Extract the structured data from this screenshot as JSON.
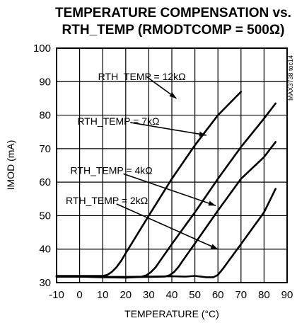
{
  "chart_data": {
    "type": "line",
    "title_line1": "TEMPERATURE COMPENSATION vs.",
    "title_line2": "RTH_TEMP (RMODTCOMP = 500Ω)",
    "xlabel": "TEMPERATURE (°C)",
    "ylabel": "IMOD (mA)",
    "xlim": [
      -10,
      90
    ],
    "ylim": [
      30,
      100
    ],
    "xticks": [
      -10,
      0,
      10,
      20,
      30,
      40,
      50,
      60,
      70,
      80,
      90
    ],
    "yticks": [
      30,
      40,
      50,
      60,
      70,
      80,
      90,
      100
    ],
    "grid": true,
    "side_label": "MAX3738 toc14",
    "series": [
      {
        "name": "RTH_TEMP = 12kΩ",
        "x": [
          -10,
          0,
          10,
          12,
          14,
          16,
          18,
          20,
          30,
          40,
          50,
          60,
          70
        ],
        "y": [
          32,
          32,
          32,
          32.3,
          33.2,
          34.6,
          36.5,
          38.8,
          50,
          61,
          71,
          80,
          87
        ]
      },
      {
        "name": "RTH_TEMP = 7kΩ",
        "x": [
          -10,
          0,
          10,
          20,
          27,
          29,
          31,
          33,
          35,
          40,
          50,
          60,
          70,
          80,
          85
        ],
        "y": [
          31.8,
          31.8,
          31.7,
          31.7,
          31.8,
          32.2,
          33.2,
          34.6,
          36.6,
          41.5,
          51,
          61,
          70.5,
          79,
          83.5
        ]
      },
      {
        "name": "RTH_TEMP = 4kΩ",
        "x": [
          -10,
          0,
          10,
          20,
          30,
          37,
          39,
          41,
          43,
          45,
          50,
          60,
          70,
          80,
          85
        ],
        "y": [
          31.8,
          31.8,
          31.7,
          31.7,
          31.7,
          31.8,
          32.2,
          33.2,
          34.8,
          36.8,
          41.7,
          51.5,
          61,
          67.5,
          72
        ]
      },
      {
        "name": "RTH_TEMP = 2kΩ",
        "x": [
          -10,
          0,
          10,
          20,
          30,
          40,
          46,
          50,
          55,
          58,
          60,
          62,
          70,
          80,
          85
        ],
        "y": [
          31.8,
          31.8,
          31.6,
          31.5,
          31.8,
          31.9,
          31.8,
          32.0,
          31.6,
          31.6,
          32.3,
          34.0,
          41.5,
          51,
          58
        ]
      }
    ],
    "annotations": [
      {
        "label": "RTH_TEMP = 12kΩ",
        "tx": 8,
        "ty": 90.5,
        "ax": 29,
        "ay": 91.5,
        "hx": 42,
        "hy": 85
      },
      {
        "label": "RTH_TEMP = 7kΩ",
        "tx": -1,
        "ty": 77.2,
        "ax": 22,
        "ay": 77.8,
        "hx": 55,
        "hy": 74
      },
      {
        "label": "RTH_TEMP = 4kΩ",
        "tx": -4,
        "ty": 62.5,
        "ax": 19,
        "ay": 62.5,
        "hx": 59,
        "hy": 53
      },
      {
        "label": "RTH_TEMP = 2kΩ",
        "tx": -6,
        "ty": 53.5,
        "ax": 16,
        "ay": 53.5,
        "hx": 60,
        "hy": 40
      }
    ]
  }
}
